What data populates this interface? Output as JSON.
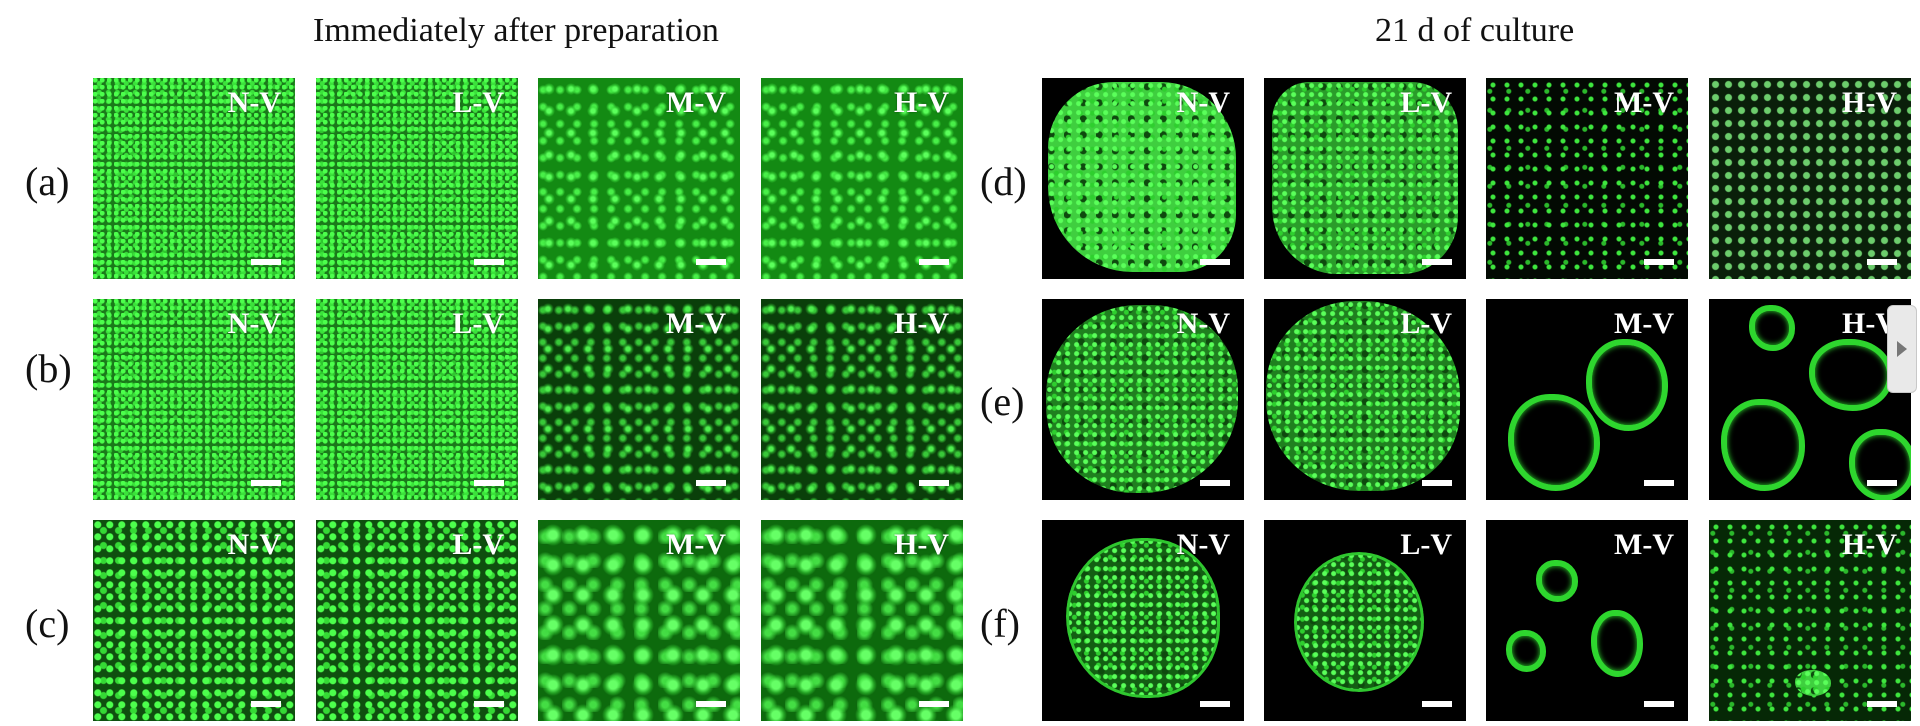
{
  "titles": {
    "left": "Immediately after preparation",
    "right": "21 d of culture"
  },
  "row_labels": [
    "(a)",
    "(b)",
    "(c)",
    "(d)",
    "(e)",
    "(f)"
  ],
  "panel_labels": [
    "N-V",
    "L-V",
    "M-V",
    "H-V"
  ],
  "side_handle_icon": "chevron-right-icon",
  "colors": {
    "fluorescence": "#3be33b",
    "background": "#000000"
  }
}
